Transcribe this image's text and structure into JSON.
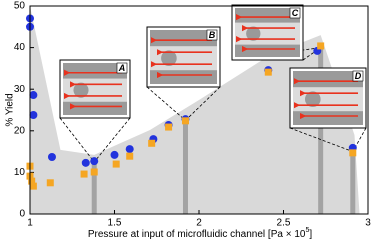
{
  "chart_data": {
    "type": "scatter",
    "y_label": "% Yield",
    "x_label": "Pressure at input of microfluidic channel [Pa × 10",
    "x_label_exponent": "5",
    "x_label_end": "]",
    "xlim": [
      1,
      3
    ],
    "ylim": [
      0,
      50
    ],
    "xticks": [
      1,
      1.5,
      2,
      2.5,
      3
    ],
    "yticks": [
      0,
      10,
      20,
      30,
      40,
      50
    ],
    "shaded_region": {
      "color": "#d9d9d9",
      "x": [
        1,
        1.18,
        1.38,
        1.71,
        2.0,
        2.42,
        2.72,
        2.92,
        2.95
      ],
      "values": [
        50,
        15.4,
        14.2,
        20.2,
        27.4,
        38.2,
        43,
        19,
        0
      ]
    },
    "highlights": {
      "color": "#a3a3a3",
      "x": [
        1.38,
        1.92,
        2.72,
        2.91
      ],
      "values": [
        12.5,
        22.5,
        40,
        15
      ]
    },
    "series": [
      {
        "color": "#2233dd",
        "marker": "circle",
        "x": [
          1.0,
          1.0,
          1.02,
          1.02,
          1.13,
          1.33,
          1.38,
          1.5,
          1.59,
          1.73,
          1.82,
          1.92,
          2.41,
          2.7,
          2.91
        ],
        "values": [
          47,
          45,
          28.6,
          23.8,
          13.7,
          12.3,
          12.7,
          14.2,
          15.6,
          18,
          21.4,
          22.8,
          34.6,
          39.2,
          15.9
        ]
      },
      {
        "color": "#f5a623",
        "marker": "square",
        "x": [
          1.0,
          1.0,
          1.01,
          1.02,
          1.12,
          1.32,
          1.38,
          1.51,
          1.59,
          1.72,
          1.82,
          1.92,
          2.41,
          2.72,
          2.91
        ],
        "values": [
          11.5,
          9.1,
          7.9,
          6.7,
          7.5,
          9.6,
          10.1,
          12,
          13.9,
          17,
          20.9,
          22.4,
          34.1,
          40.4,
          14.7
        ]
      }
    ],
    "insets": [
      "A",
      "B",
      "C",
      "D"
    ]
  }
}
